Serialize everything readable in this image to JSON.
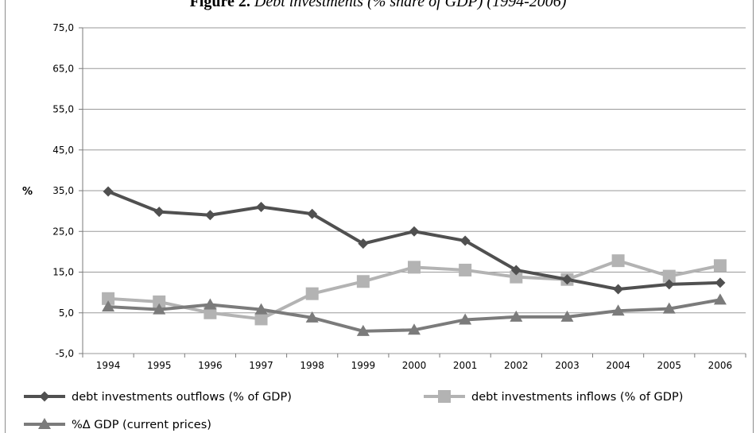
{
  "figure": {
    "title_bold": "Figure 2.",
    "title_italic": "Debt investments (% share of GDP) (1994-2006)"
  },
  "chart_data": {
    "type": "line",
    "title": "Figure 2. Debt investments (% share of GDP) (1994-2006)",
    "xlabel": "",
    "ylabel": "%",
    "ylim": [
      -5,
      75
    ],
    "yticks": [
      -5,
      5,
      15,
      25,
      35,
      45,
      55,
      65,
      75
    ],
    "ytick_labels": [
      "-5,0",
      "5,0",
      "15,0",
      "25,0",
      "35,0",
      "45,0",
      "55,0",
      "65,0",
      "75,0"
    ],
    "grid": "horizontal",
    "legend_position": "bottom",
    "categories": [
      "1994",
      "1995",
      "1996",
      "1997",
      "1998",
      "1999",
      "2000",
      "2001",
      "2002",
      "2003",
      "2004",
      "2005",
      "2006"
    ],
    "series": [
      {
        "name": "debt investments outflows (% of GDP)",
        "marker": "diamond",
        "color": "#505050",
        "values": [
          34.8,
          29.8,
          29.0,
          31.0,
          29.3,
          22.0,
          25.0,
          22.7,
          15.5,
          13.2,
          10.8,
          12.0,
          12.4
        ]
      },
      {
        "name": "debt investments inflows (% of GDP)",
        "marker": "square",
        "color": "#b3b3b3",
        "values": [
          8.5,
          7.7,
          5.0,
          3.5,
          9.7,
          12.7,
          16.2,
          15.5,
          13.8,
          13.2,
          17.8,
          14.0,
          16.6
        ]
      },
      {
        "name": "%Δ GDP (current prices)",
        "marker": "triangle",
        "color": "#7b7b7b",
        "values": [
          6.5,
          5.8,
          7.0,
          5.8,
          3.8,
          0.5,
          0.8,
          3.3,
          4.0,
          4.0,
          5.5,
          6.0,
          8.2
        ]
      }
    ]
  }
}
